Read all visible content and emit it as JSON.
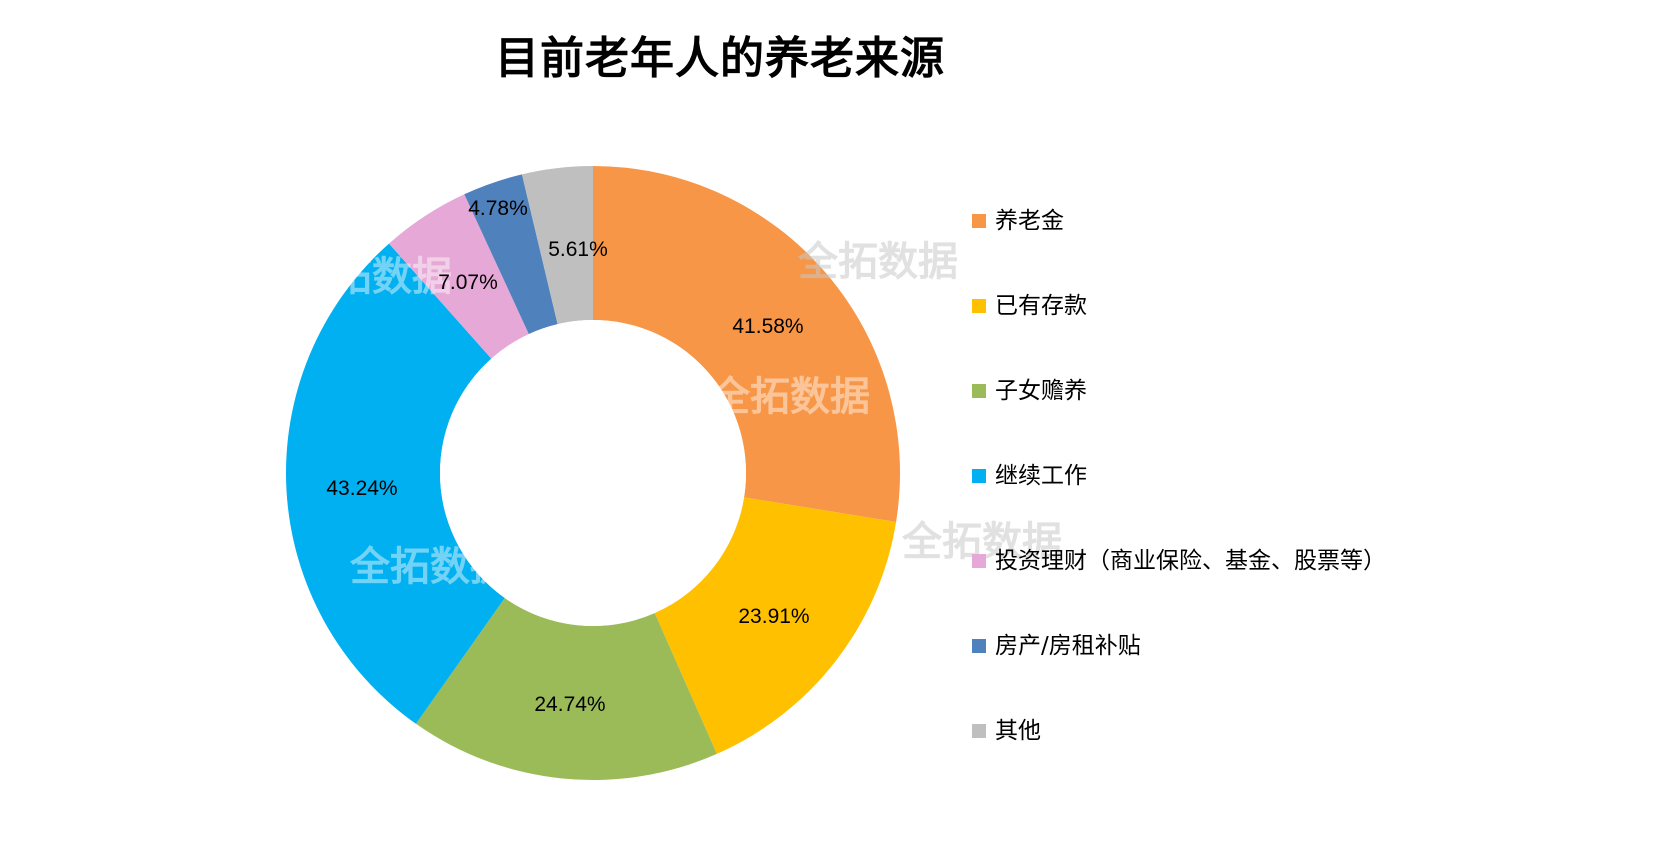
{
  "title": "目前老年人的养老来源",
  "watermark_text": "全拓数据",
  "chart_data": {
    "type": "pie",
    "variant": "donut",
    "title": "目前老年人的养老来源",
    "categories": [
      "养老金",
      "已有存款",
      "子女赡养",
      "继续工作",
      "投资理财（商业保险、基金、股票等）",
      "房产/房租补贴",
      "其他"
    ],
    "values": [
      41.58,
      23.91,
      24.74,
      43.24,
      7.07,
      4.78,
      5.61
    ],
    "labels": [
      "41.58%",
      "23.91%",
      "24.74%",
      "43.24%",
      "7.07%",
      "4.78%",
      "5.61%"
    ],
    "colors": [
      "#F79646",
      "#FFC000",
      "#9BBB59",
      "#00B0F0",
      "#E6A9D7",
      "#4F81BD",
      "#BFBFBF"
    ],
    "unit": "%",
    "legend_position": "right",
    "start_angle_deg": 0,
    "direction": "clockwise"
  },
  "legend": {
    "items": [
      {
        "label": "养老金",
        "color": "#F79646"
      },
      {
        "label": "已有存款",
        "color": "#FFC000"
      },
      {
        "label": "子女赡养",
        "color": "#9BBB59"
      },
      {
        "label": "继续工作",
        "color": "#00B0F0"
      },
      {
        "label": "投资理财（商业保险、基金、股票等）",
        "color": "#E6A9D7"
      },
      {
        "label": "房产/房租补贴",
        "color": "#4F81BD"
      },
      {
        "label": "其他",
        "color": "#BFBFBF"
      }
    ]
  }
}
